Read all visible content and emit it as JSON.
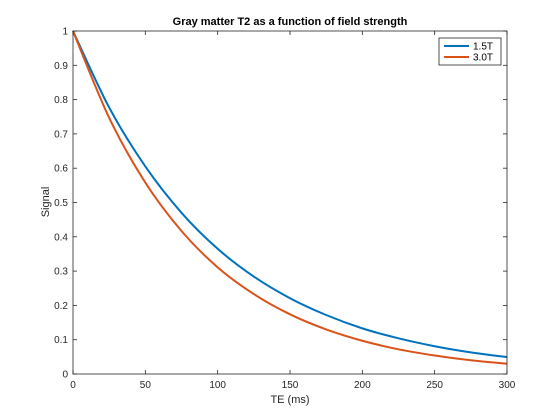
{
  "chart_data": {
    "type": "line",
    "title": "Gray matter T2 as a function of field strength",
    "xlabel": "TE (ms)",
    "ylabel": "Signal",
    "xlim": [
      0,
      300
    ],
    "ylim": [
      0,
      1
    ],
    "xticks": [
      0,
      50,
      100,
      150,
      200,
      250,
      300
    ],
    "yticks": [
      0,
      0.1,
      0.2,
      0.3,
      0.4,
      0.5,
      0.6,
      0.7,
      0.8,
      0.9,
      1
    ],
    "xtick_labels": [
      "0",
      "50",
      "100",
      "150",
      "200",
      "250",
      "300"
    ],
    "ytick_labels": [
      "0",
      "0.1",
      "0.2",
      "0.3",
      "0.4",
      "0.5",
      "0.6",
      "0.7",
      "0.8",
      "0.9",
      "1"
    ],
    "grid": false,
    "legend_position": "top-right",
    "x": [
      0,
      25,
      50,
      75,
      100,
      125,
      150,
      175,
      200,
      225,
      250,
      275,
      300
    ],
    "series": [
      {
        "name": "1.5T",
        "color": "#0072BD",
        "values": [
          1.0,
          0.777,
          0.605,
          0.47,
          0.365,
          0.284,
          0.221,
          0.172,
          0.133,
          0.104,
          0.081,
          0.063,
          0.049
        ]
      },
      {
        "name": "3.0T",
        "color": "#D95319",
        "values": [
          1.0,
          0.747,
          0.558,
          0.417,
          0.311,
          0.233,
          0.174,
          0.13,
          0.097,
          0.072,
          0.054,
          0.04,
          0.03
        ]
      }
    ]
  }
}
